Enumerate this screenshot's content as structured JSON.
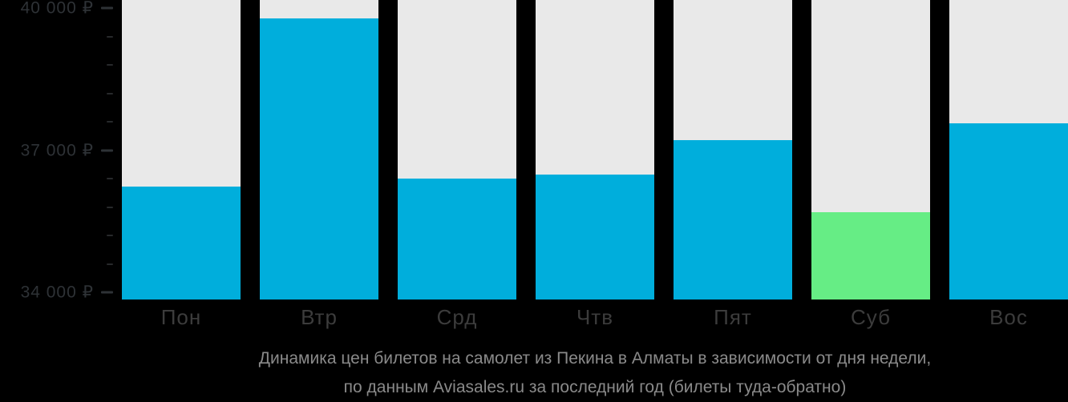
{
  "chart_data": {
    "type": "bar",
    "title": "Динамика цен билетов на самолет из Пекина в Алматы в зависимости от дня недели, по данным Aviasales.ru за последний год (билеты туда-обратно)",
    "categories": [
      "Пон",
      "Втр",
      "Срд",
      "Чтв",
      "Пят",
      "Суб",
      "Вос"
    ],
    "values": [
      36230,
      39780,
      36400,
      36490,
      37210,
      35700,
      37570
    ],
    "currency": "₽",
    "highlight_index": 5,
    "xlabel": "",
    "ylabel": "",
    "ylim": [
      33850,
      40170
    ],
    "grid": false,
    "legend": null,
    "y_axis": {
      "major_ticks": [
        {
          "value": 40000,
          "label": "40 000 ₽"
        },
        {
          "value": 37000,
          "label": "37 000 ₽"
        },
        {
          "value": 34000,
          "label": "34 000 ₽"
        }
      ],
      "tick_min": 34000,
      "tick_max": 40000,
      "minor_tick_interval": 600
    }
  },
  "caption": {
    "line1": "Динамика цен билетов на самолет из Пекина в Алматы в зависимости от дня недели,",
    "line2": "по данным Aviasales.ru за последний год (билеты туда-обратно)"
  },
  "colors": {
    "background": "#000000",
    "column_background": "#E9E9E9",
    "bar_default": "#00AEDC",
    "bar_highlight": "#66ED85",
    "y_label": "#2E3236",
    "minor_tick": "#27292B",
    "day_label": "#3C3C3C",
    "caption_text": "#8A8A8A"
  }
}
